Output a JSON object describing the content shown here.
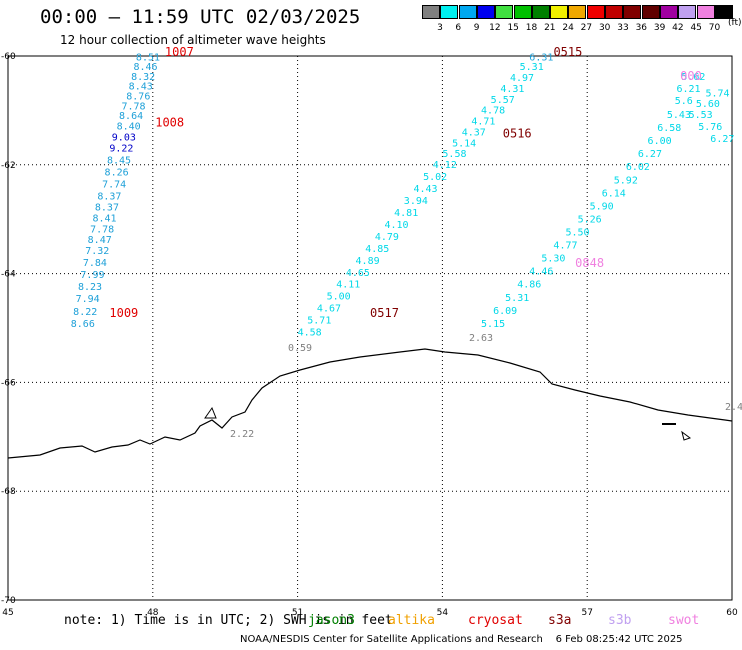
{
  "header": {
    "title": "00:00 – 11:59 UTC 02/03/2025",
    "subtitle": "12 hour collection of altimeter wave heights"
  },
  "colorbar": {
    "unit": "(ft)",
    "bins": [
      {
        "label": "3",
        "color": "#808080"
      },
      {
        "label": "6",
        "color": "#00f0f0"
      },
      {
        "label": "9",
        "color": "#00a8f0"
      },
      {
        "label": "12",
        "color": "#0000f0"
      },
      {
        "label": "15",
        "color": "#40e040"
      },
      {
        "label": "18",
        "color": "#00c000"
      },
      {
        "label": "21",
        "color": "#008000"
      },
      {
        "label": "24",
        "color": "#f0f000"
      },
      {
        "label": "27",
        "color": "#f0a800"
      },
      {
        "label": "30",
        "color": "#f00000"
      },
      {
        "label": "33",
        "color": "#c00000"
      },
      {
        "label": "36",
        "color": "#800000"
      },
      {
        "label": "39",
        "color": "#600000"
      },
      {
        "label": "42",
        "color": "#a000a0"
      },
      {
        "label": "45",
        "color": "#c0a0f0"
      },
      {
        "label": "70",
        "color": "#f080e0"
      },
      {
        "label": "",
        "color": "#000000"
      }
    ]
  },
  "chart_data": {
    "type": "scatter",
    "x_axis": {
      "ticks": [
        45,
        48,
        51,
        54,
        57,
        60
      ]
    },
    "y_axis": {
      "ticks": [
        -60,
        -62,
        -64,
        -66,
        -68,
        -70
      ]
    },
    "grid": "dotted",
    "series": [
      {
        "color": "#1ea0d8",
        "points": [
          {
            "lon": 47.9,
            "lat": -60.08,
            "label": "8.51"
          },
          {
            "lon": 47.85,
            "lat": -60.26,
            "label": "8.46"
          },
          {
            "lon": 47.8,
            "lat": -60.44,
            "label": "8.32"
          },
          {
            "lon": 47.75,
            "lat": -60.62,
            "label": "8.43"
          },
          {
            "lon": 47.7,
            "lat": -60.8,
            "label": "8.76"
          },
          {
            "lon": 47.6,
            "lat": -60.98,
            "label": "7.78"
          },
          {
            "lon": 47.55,
            "lat": -61.16,
            "label": "8.64"
          },
          {
            "lon": 47.5,
            "lat": -61.35,
            "label": "8.40"
          },
          {
            "lon": 47.4,
            "lat": -61.55,
            "label": "9.03",
            "color": "#0000c8"
          },
          {
            "lon": 47.35,
            "lat": -61.76,
            "label": "9.22",
            "color": "#0000c8"
          },
          {
            "lon": 47.3,
            "lat": -61.98,
            "label": "8.45"
          },
          {
            "lon": 47.25,
            "lat": -62.2,
            "label": "8.26"
          },
          {
            "lon": 47.2,
            "lat": -62.42,
            "label": "7.74"
          },
          {
            "lon": 47.1,
            "lat": -62.64,
            "label": "8.37"
          },
          {
            "lon": 47.05,
            "lat": -62.84,
            "label": "8.37"
          },
          {
            "lon": 47.0,
            "lat": -63.04,
            "label": "8.41"
          },
          {
            "lon": 46.95,
            "lat": -63.24,
            "label": "7.78"
          },
          {
            "lon": 46.9,
            "lat": -63.44,
            "label": "8.47"
          },
          {
            "lon": 46.85,
            "lat": -63.64,
            "label": "7.32"
          },
          {
            "lon": 46.8,
            "lat": -63.86,
            "label": "7.84"
          },
          {
            "lon": 46.75,
            "lat": -64.08,
            "label": "7.99"
          },
          {
            "lon": 46.7,
            "lat": -64.3,
            "label": "8.23"
          },
          {
            "lon": 46.65,
            "lat": -64.52,
            "label": "7.94"
          },
          {
            "lon": 46.6,
            "lat": -64.76,
            "label": "8.22"
          },
          {
            "lon": 46.55,
            "lat": -64.98,
            "label": "8.66"
          }
        ]
      },
      {
        "color": "#00d8e8",
        "points": [
          {
            "lon": 56.05,
            "lat": -60.08,
            "label": "6.31",
            "color": "#1ea0d8"
          },
          {
            "lon": 55.85,
            "lat": -60.26,
            "label": "5.31"
          },
          {
            "lon": 55.65,
            "lat": -60.46,
            "label": "4.97"
          },
          {
            "lon": 55.45,
            "lat": -60.66,
            "label": "4.31"
          },
          {
            "lon": 55.25,
            "lat": -60.86,
            "label": "5.57"
          },
          {
            "lon": 55.05,
            "lat": -61.06,
            "label": "4.78"
          },
          {
            "lon": 54.85,
            "lat": -61.26,
            "label": "4.71"
          },
          {
            "lon": 54.65,
            "lat": -61.46,
            "label": "4.37"
          },
          {
            "lon": 54.45,
            "lat": -61.66,
            "label": "5.14"
          },
          {
            "lon": 54.25,
            "lat": -61.86,
            "label": "5.58"
          },
          {
            "lon": 54.05,
            "lat": -62.06,
            "label": "4.12"
          },
          {
            "lon": 53.85,
            "lat": -62.28,
            "label": "5.02"
          },
          {
            "lon": 53.65,
            "lat": -62.5,
            "label": "4.43"
          },
          {
            "lon": 53.45,
            "lat": -62.72,
            "label": "3.94"
          },
          {
            "lon": 53.25,
            "lat": -62.94,
            "label": "4.81"
          },
          {
            "lon": 53.05,
            "lat": -63.16,
            "label": "4.10"
          },
          {
            "lon": 52.85,
            "lat": -63.38,
            "label": "4.79"
          },
          {
            "lon": 52.65,
            "lat": -63.6,
            "label": "4.85"
          },
          {
            "lon": 52.45,
            "lat": -63.82,
            "label": "4.89"
          },
          {
            "lon": 52.25,
            "lat": -64.04,
            "label": "4.65"
          },
          {
            "lon": 52.05,
            "lat": -64.26,
            "label": "4.11"
          },
          {
            "lon": 51.85,
            "lat": -64.48,
            "label": "5.00"
          },
          {
            "lon": 51.65,
            "lat": -64.7,
            "label": "4.67"
          },
          {
            "lon": 51.45,
            "lat": -64.92,
            "label": "5.71"
          },
          {
            "lon": 51.25,
            "lat": -65.14,
            "label": "4.58"
          },
          {
            "lon": 51.05,
            "lat": -65.42,
            "label": "0.59",
            "color": "#808080"
          }
        ]
      },
      {
        "color": "#00d8e8",
        "points": [
          {
            "lon": 59.2,
            "lat": -60.44,
            "label": "5.62"
          },
          {
            "lon": 59.1,
            "lat": -60.66,
            "label": "6.21"
          },
          {
            "lon": 59.0,
            "lat": -60.88,
            "label": "5.6"
          },
          {
            "lon": 58.9,
            "lat": -61.14,
            "label": "5.43"
          },
          {
            "lon": 58.7,
            "lat": -61.38,
            "label": "6.58"
          },
          {
            "lon": 58.5,
            "lat": -61.62,
            "label": "6.00"
          },
          {
            "lon": 58.3,
            "lat": -61.86,
            "label": "6.27"
          },
          {
            "lon": 58.05,
            "lat": -62.1,
            "label": "6.02"
          },
          {
            "lon": 57.8,
            "lat": -62.34,
            "label": "5.92"
          },
          {
            "lon": 57.55,
            "lat": -62.58,
            "label": "6.14"
          },
          {
            "lon": 57.3,
            "lat": -62.82,
            "label": "5.90"
          },
          {
            "lon": 57.05,
            "lat": -63.06,
            "label": "5.26"
          },
          {
            "lon": 56.8,
            "lat": -63.3,
            "label": "5.50"
          },
          {
            "lon": 56.55,
            "lat": -63.54,
            "label": "4.77"
          },
          {
            "lon": 56.3,
            "lat": -63.78,
            "label": "5.30"
          },
          {
            "lon": 56.05,
            "lat": -64.02,
            "label": "4.46"
          },
          {
            "lon": 55.8,
            "lat": -64.26,
            "label": "4.86"
          },
          {
            "lon": 55.55,
            "lat": -64.5,
            "label": "5.31"
          },
          {
            "lon": 55.3,
            "lat": -64.74,
            "label": "6.09"
          },
          {
            "lon": 55.05,
            "lat": -64.98,
            "label": "5.15"
          },
          {
            "lon": 54.8,
            "lat": -65.24,
            "label": "2.63",
            "color": "#808080"
          }
        ]
      },
      {
        "color": "#00d8e8",
        "points": [
          {
            "lon": 59.7,
            "lat": -60.74,
            "label": "5.74"
          },
          {
            "lon": 59.5,
            "lat": -60.94,
            "label": "5.60"
          },
          {
            "lon": 59.35,
            "lat": -61.14,
            "label": "5.53"
          },
          {
            "lon": 59.55,
            "lat": -61.36,
            "label": "5.76"
          },
          {
            "lon": 59.8,
            "lat": -61.58,
            "label": "6.27"
          }
        ]
      },
      {
        "color": "#808080",
        "points": [
          {
            "lon": 49.85,
            "lat": -67.0,
            "label": "2.22"
          }
        ]
      }
    ],
    "time_labels": [
      {
        "lon": 48.55,
        "lat": -60.0,
        "label": "1007",
        "color": "#e00000"
      },
      {
        "lon": 48.35,
        "lat": -61.3,
        "label": "1008",
        "color": "#e00000"
      },
      {
        "lon": 47.4,
        "lat": -64.8,
        "label": "1009",
        "color": "#e00000"
      },
      {
        "lon": 56.6,
        "lat": -60.0,
        "label": "0515",
        "color": "#800000"
      },
      {
        "lon": 55.55,
        "lat": -61.5,
        "label": "0516",
        "color": "#800000"
      },
      {
        "lon": 52.8,
        "lat": -64.8,
        "label": "0517",
        "color": "#800000"
      },
      {
        "lon": 57.05,
        "lat": -63.88,
        "label": "0848",
        "color": "#f080e0"
      },
      {
        "lon": 59.15,
        "lat": -60.44,
        "label": "000",
        "color": "#f080e0"
      }
    ]
  },
  "note": "note: 1) Time is in UTC; 2) SWH is in feet",
  "satellites": [
    {
      "name": "jason3",
      "color": "#008000"
    },
    {
      "name": "altika",
      "color": "#f0a000"
    },
    {
      "name": "cryosat",
      "color": "#e00000"
    },
    {
      "name": "s3a",
      "color": "#800000"
    },
    {
      "name": "s3b",
      "color": "#c0a0f0"
    },
    {
      "name": "swot",
      "color": "#f080e0"
    }
  ],
  "footer": {
    "credit": "NOAA/NESDIS Center for Satellite Applications and Research",
    "timestamp": "6 Feb 08:25:42 UTC 2025"
  },
  "edge_labels": {
    "right_value": "2.4"
  }
}
